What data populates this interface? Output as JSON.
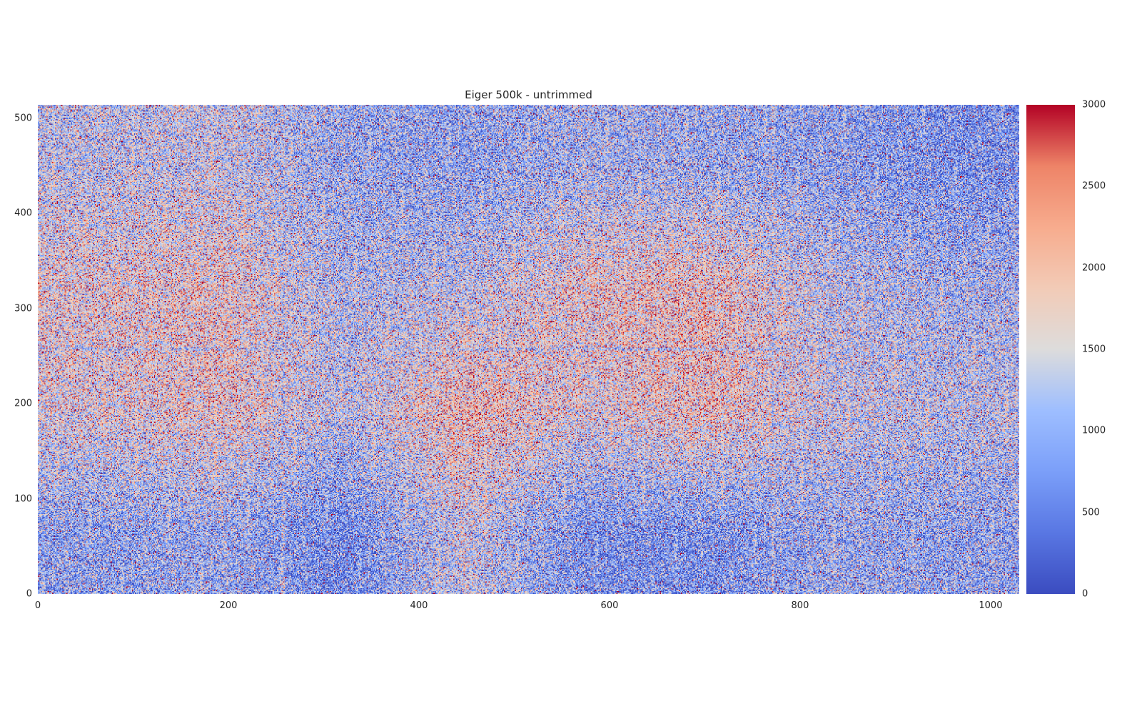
{
  "chart_data": {
    "type": "heatmap",
    "title": "Eiger 500k - untrimmed",
    "xlabel": "",
    "ylabel": "",
    "shape": [
      514,
      1030
    ],
    "xlim": [
      0,
      1030
    ],
    "ylim": [
      0,
      514
    ],
    "origin": "lower",
    "colormap": "coolwarm",
    "clim": [
      0,
      3000
    ],
    "grid": false,
    "x_ticks": [
      "0",
      "200",
      "400",
      "600",
      "800",
      "1000"
    ],
    "y_ticks": [
      "0",
      "100",
      "200",
      "300",
      "400",
      "500"
    ],
    "colorbar_ticks": [
      "0",
      "500",
      "1000",
      "1500",
      "2000",
      "2500",
      "3000"
    ],
    "approx_block_means": {
      "block_size": [
        128,
        128
      ],
      "rows_bottom_to_top": [
        [
          900,
          1000,
          600,
          1400,
          700,
          700,
          1000,
          900
        ],
        [
          1600,
          1800,
          1300,
          2000,
          1600,
          1900,
          1400,
          1300
        ],
        [
          1700,
          1800,
          1200,
          1300,
          1800,
          1900,
          1300,
          1100
        ],
        [
          1300,
          1400,
          1000,
          900,
          1100,
          1000,
          900,
          700
        ]
      ]
    }
  }
}
